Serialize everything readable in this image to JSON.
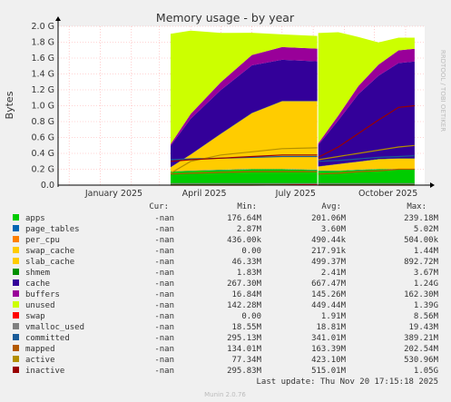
{
  "title": "Memory usage - by year",
  "ylabel": "Bytes",
  "side_label": "RRDTOOL / TOBI OETIKER",
  "colors": {
    "apps": "#00cc00",
    "page_tables": "#0066b3",
    "per_cpu": "#ff8000",
    "swap_cache": "#ffcc00",
    "slab_cache": "#ffcc00",
    "shmem": "#008f00",
    "cache": "#330099",
    "buffers": "#990099",
    "unused": "#ccff00",
    "swap": "#ff0000",
    "vmalloc_used": "#808080",
    "committed": "#1a5c99",
    "mapped": "#b35900",
    "active": "#b38f00",
    "inactive": "#990000",
    "plot_bg": "#ffffff",
    "grid_major": "#ffaaaa"
  },
  "legend_header": {
    "cur": "Cur:",
    "min": "Min:",
    "avg": "Avg:",
    "max": "Max:"
  },
  "legend": [
    {
      "key": "apps",
      "name": "apps",
      "cur": "-nan",
      "min": "176.64M",
      "avg": "201.06M",
      "max": "239.18M"
    },
    {
      "key": "page_tables",
      "name": "page_tables",
      "cur": "-nan",
      "min": "2.87M",
      "avg": "3.60M",
      "max": "5.02M"
    },
    {
      "key": "per_cpu",
      "name": "per_cpu",
      "cur": "-nan",
      "min": "436.00k",
      "avg": "490.44k",
      "max": "504.00k"
    },
    {
      "key": "swap_cache",
      "name": "swap_cache",
      "cur": "-nan",
      "min": "0.00",
      "avg": "217.91k",
      "max": "1.44M"
    },
    {
      "key": "slab_cache",
      "name": "slab_cache",
      "cur": "-nan",
      "min": "46.33M",
      "avg": "499.37M",
      "max": "892.72M"
    },
    {
      "key": "shmem",
      "name": "shmem",
      "cur": "-nan",
      "min": "1.83M",
      "avg": "2.41M",
      "max": "3.67M"
    },
    {
      "key": "cache",
      "name": "cache",
      "cur": "-nan",
      "min": "267.30M",
      "avg": "667.47M",
      "max": "1.24G"
    },
    {
      "key": "buffers",
      "name": "buffers",
      "cur": "-nan",
      "min": "16.84M",
      "avg": "145.26M",
      "max": "162.30M"
    },
    {
      "key": "unused",
      "name": "unused",
      "cur": "-nan",
      "min": "142.28M",
      "avg": "449.44M",
      "max": "1.39G"
    },
    {
      "key": "swap",
      "name": "swap",
      "cur": "-nan",
      "min": "0.00",
      "avg": "1.91M",
      "max": "8.56M"
    },
    {
      "key": "vmalloc_used",
      "name": "vmalloc_used",
      "cur": "-nan",
      "min": "18.55M",
      "avg": "18.81M",
      "max": "19.43M"
    },
    {
      "key": "committed",
      "name": "committed",
      "cur": "-nan",
      "min": "295.13M",
      "avg": "341.01M",
      "max": "389.21M"
    },
    {
      "key": "mapped",
      "name": "mapped",
      "cur": "-nan",
      "min": "134.01M",
      "avg": "163.39M",
      "max": "202.54M"
    },
    {
      "key": "active",
      "name": "active",
      "cur": "-nan",
      "min": "77.34M",
      "avg": "423.10M",
      "max": "530.96M"
    },
    {
      "key": "inactive",
      "name": "inactive",
      "cur": "-nan",
      "min": "295.83M",
      "avg": "515.01M",
      "max": "1.05G"
    }
  ],
  "last_update": "Last update: Thu Nov 20 17:15:18 2025",
  "footer": "Munin 2.0.76",
  "chart_data": {
    "type": "area",
    "title": "Memory usage - by year",
    "ylabel": "Bytes",
    "y_unit": "GB",
    "ylim": [
      0,
      2.0
    ],
    "yticks": [
      0,
      0.2,
      0.4,
      0.6,
      0.8,
      1.0,
      1.2,
      1.4,
      1.6,
      1.8,
      2.0
    ],
    "ytick_labels": [
      "0.0",
      "0.2 G",
      "0.4 G",
      "0.6 G",
      "0.8 G",
      "1.0 G",
      "1.2 G",
      "1.4 G",
      "1.6 G",
      "1.8 G",
      "2.0 G"
    ],
    "x_ticks": [
      {
        "date": "2025-01-01",
        "label": "January 2025"
      },
      {
        "date": "2025-04-01",
        "label": "April 2025"
      },
      {
        "date": "2025-07-01",
        "label": "July 2025"
      },
      {
        "date": "2025-10-01",
        "label": "October 2025"
      }
    ],
    "xlim": [
      "2024-11-20",
      "2025-11-20"
    ],
    "grid": true,
    "x": [
      "2025-03-12",
      "2025-04-01",
      "2025-05-01",
      "2025-06-01",
      "2025-07-01",
      "2025-08-05",
      "2025-08-06",
      "2025-08-26",
      "2025-09-15",
      "2025-10-05",
      "2025-10-25",
      "2025-11-10"
    ],
    "stacked_series": [
      {
        "name": "apps",
        "values": [
          0.17,
          0.18,
          0.19,
          0.2,
          0.2,
          0.19,
          0.18,
          0.18,
          0.19,
          0.2,
          0.2,
          0.2
        ]
      },
      {
        "name": "page_tables",
        "values": [
          0.003,
          0.003,
          0.004,
          0.004,
          0.004,
          0.004,
          0.003,
          0.003,
          0.004,
          0.004,
          0.004,
          0.004
        ]
      },
      {
        "name": "per_cpu",
        "values": [
          0.0005,
          0.0005,
          0.0005,
          0.0005,
          0.0005,
          0.0005,
          0.0005,
          0.0005,
          0.0005,
          0.0005,
          0.0005,
          0.0005
        ]
      },
      {
        "name": "swap_cache",
        "values": [
          0,
          0,
          0,
          0.001,
          0.001,
          0.001,
          0,
          0,
          0,
          0,
          0,
          0
        ]
      },
      {
        "name": "slab_cache",
        "values": [
          0.05,
          0.2,
          0.45,
          0.7,
          0.85,
          0.86,
          0.05,
          0.08,
          0.1,
          0.12,
          0.13,
          0.13
        ]
      },
      {
        "name": "shmem",
        "values": [
          0.002,
          0.002,
          0.002,
          0.003,
          0.003,
          0.003,
          0.002,
          0.002,
          0.002,
          0.003,
          0.003,
          0.003
        ]
      },
      {
        "name": "cache",
        "values": [
          0.27,
          0.45,
          0.55,
          0.6,
          0.52,
          0.5,
          0.27,
          0.55,
          0.85,
          1.05,
          1.2,
          1.22
        ]
      },
      {
        "name": "buffers",
        "values": [
          0.02,
          0.06,
          0.1,
          0.13,
          0.16,
          0.16,
          0.02,
          0.06,
          0.1,
          0.14,
          0.16,
          0.16
        ]
      },
      {
        "name": "unused",
        "values": [
          1.39,
          1.05,
          0.62,
          0.28,
          0.16,
          0.16,
          1.39,
          1.05,
          0.62,
          0.28,
          0.16,
          0.14
        ]
      }
    ],
    "line_series": [
      {
        "name": "swap",
        "values": [
          0,
          0,
          0,
          0,
          0.002,
          0.008,
          0,
          0,
          0,
          0,
          0,
          0
        ]
      },
      {
        "name": "vmalloc_used",
        "values": [
          0.019,
          0.019,
          0.019,
          0.019,
          0.019,
          0.019,
          0.019,
          0.019,
          0.019,
          0.019,
          0.019,
          0.019
        ]
      },
      {
        "name": "committed",
        "values": [
          0.32,
          0.33,
          0.34,
          0.35,
          0.36,
          0.36,
          0.3,
          0.31,
          0.33,
          0.35,
          0.36,
          0.37
        ]
      },
      {
        "name": "mapped",
        "values": [
          0.14,
          0.15,
          0.16,
          0.17,
          0.17,
          0.17,
          0.14,
          0.15,
          0.17,
          0.18,
          0.2,
          0.2
        ]
      },
      {
        "name": "active",
        "values": [
          0.15,
          0.3,
          0.38,
          0.42,
          0.46,
          0.47,
          0.32,
          0.36,
          0.4,
          0.44,
          0.48,
          0.5
        ]
      },
      {
        "name": "inactive",
        "values": [
          0.3,
          0.32,
          0.34,
          0.36,
          0.38,
          0.38,
          0.35,
          0.48,
          0.65,
          0.82,
          0.98,
          1.0
        ]
      }
    ]
  }
}
